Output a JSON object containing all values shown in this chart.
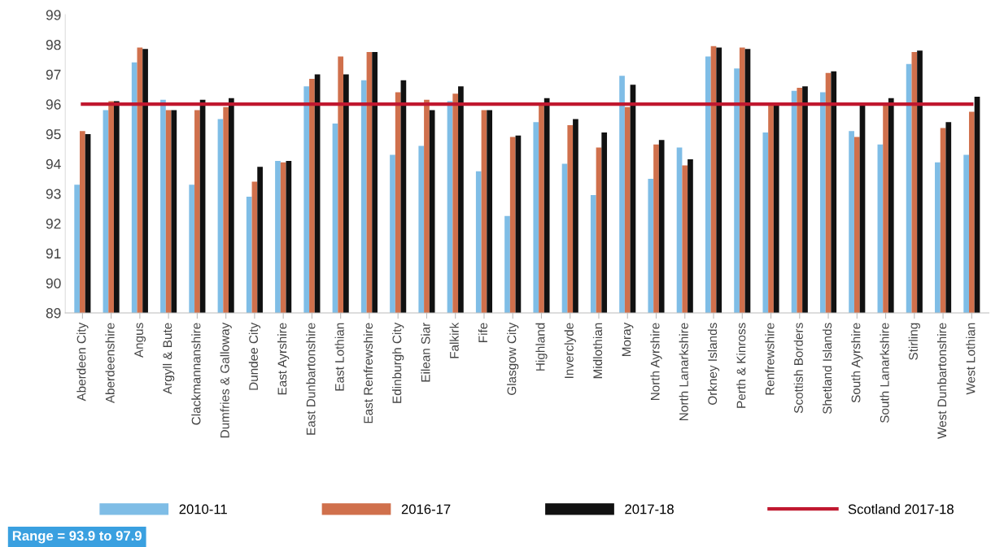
{
  "chart_data": {
    "type": "bar",
    "categories": [
      "Aberdeen City",
      "Aberdeenshire",
      "Angus",
      "Argyll & Bute",
      "Clackmannanshire",
      "Dumfries & Galloway",
      "Dundee City",
      "East Ayrshire",
      "East Dunbartonshire",
      "East Lothian",
      "East Renfrewshire",
      "Edinburgh City",
      "Eilean Siar",
      "Falkirk",
      "Fife",
      "Glasgow City",
      "Highland",
      "Inverclyde",
      "Midlothian",
      "Moray",
      "North Ayrshire",
      "North Lanarkshire",
      "Orkney Islands",
      "Perth & Kinross",
      "Renfrewshire",
      "Scottish Borders",
      "Shetland Islands",
      "South Ayrshire",
      "South Lanarkshire",
      "Stirling",
      "West Dunbartonshire",
      "West Lothian"
    ],
    "series": [
      {
        "name": "2010-11",
        "color": "#7fbde6",
        "values": [
          93.3,
          95.8,
          97.4,
          96.15,
          93.3,
          95.5,
          92.9,
          94.1,
          96.6,
          95.35,
          96.8,
          94.3,
          94.6,
          96.1,
          93.75,
          92.25,
          95.4,
          94.0,
          92.95,
          96.95,
          93.5,
          94.55,
          97.6,
          97.2,
          95.05,
          96.45,
          96.4,
          95.1,
          94.65,
          97.35,
          94.05,
          94.3
        ]
      },
      {
        "name": "2016-17",
        "color": "#d0704c",
        "values": [
          95.1,
          96.1,
          97.9,
          95.8,
          95.8,
          95.9,
          93.4,
          94.05,
          96.85,
          97.6,
          97.75,
          96.4,
          96.15,
          96.35,
          95.8,
          94.9,
          96.0,
          95.3,
          94.55,
          95.9,
          94.65,
          93.95,
          97.95,
          97.9,
          96.0,
          96.55,
          97.05,
          94.9,
          96.0,
          97.75,
          95.2,
          95.75
        ]
      },
      {
        "name": "2017-18",
        "color": "#111111",
        "values": [
          95.0,
          96.1,
          97.85,
          95.8,
          96.15,
          96.2,
          93.9,
          94.1,
          97.0,
          97.0,
          97.75,
          96.8,
          95.8,
          96.6,
          95.8,
          94.95,
          96.2,
          95.5,
          95.05,
          96.65,
          94.8,
          94.15,
          97.9,
          97.85,
          96.0,
          96.6,
          97.1,
          96.0,
          96.2,
          97.8,
          95.4,
          96.25
        ]
      },
      {
        "name": "Scotland 2017-18",
        "type": "line",
        "color": "#c0182f",
        "values": [
          96,
          96,
          96,
          96,
          96,
          96,
          96,
          96,
          96,
          96,
          96,
          96,
          96,
          96,
          96,
          96,
          96,
          96,
          96,
          96,
          96,
          96,
          96,
          96,
          96,
          96,
          96,
          96,
          96,
          96,
          96,
          96
        ]
      }
    ],
    "ylim": [
      89,
      99
    ],
    "yticks": [
      89,
      90,
      91,
      92,
      93,
      94,
      95,
      96,
      97,
      98,
      99
    ],
    "legend": "bottom",
    "annotations": [
      "Range = 93.9 to 97.9"
    ]
  }
}
